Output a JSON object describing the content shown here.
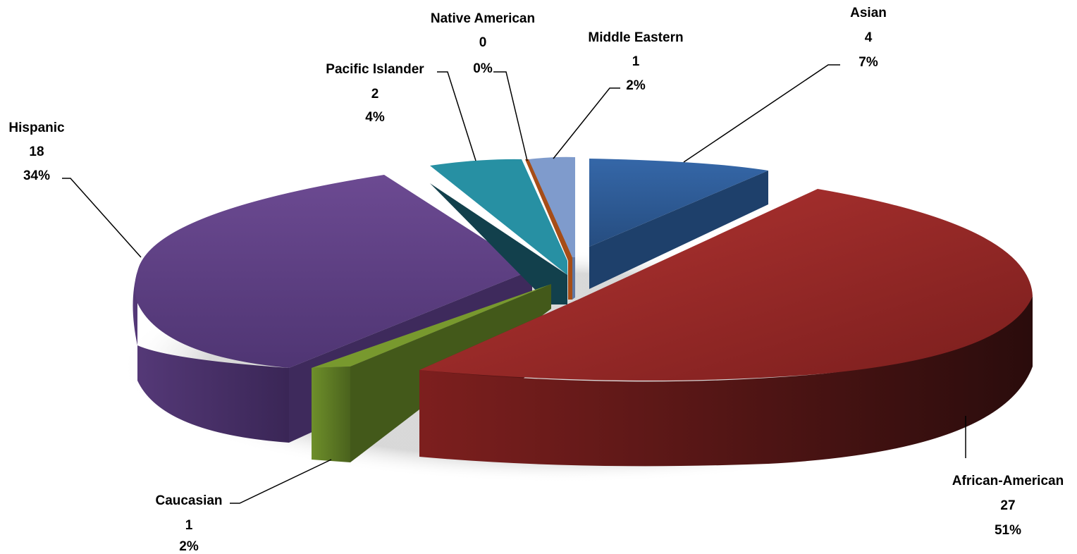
{
  "chart_data": {
    "type": "pie",
    "style": "3d-exploded",
    "title": "",
    "slices": [
      {
        "name": "Asian",
        "value": 4,
        "percent": "7%",
        "color": "#2F5C9A"
      },
      {
        "name": "African-American",
        "value": 27,
        "percent": "51%",
        "color": "#A22C2B"
      },
      {
        "name": "Caucasian",
        "value": 1,
        "percent": "2%",
        "color": "#6B8C2B"
      },
      {
        "name": "Hispanic",
        "value": 18,
        "percent": "34%",
        "color": "#5F4388"
      },
      {
        "name": "Pacific Islander",
        "value": 2,
        "percent": "4%",
        "color": "#1F8A9E"
      },
      {
        "name": "Native American",
        "value": 0,
        "percent": "0%",
        "color": "#B0521A"
      },
      {
        "name": "Middle Eastern",
        "value": 1,
        "percent": "2%",
        "color": "#7D98C8"
      }
    ]
  }
}
